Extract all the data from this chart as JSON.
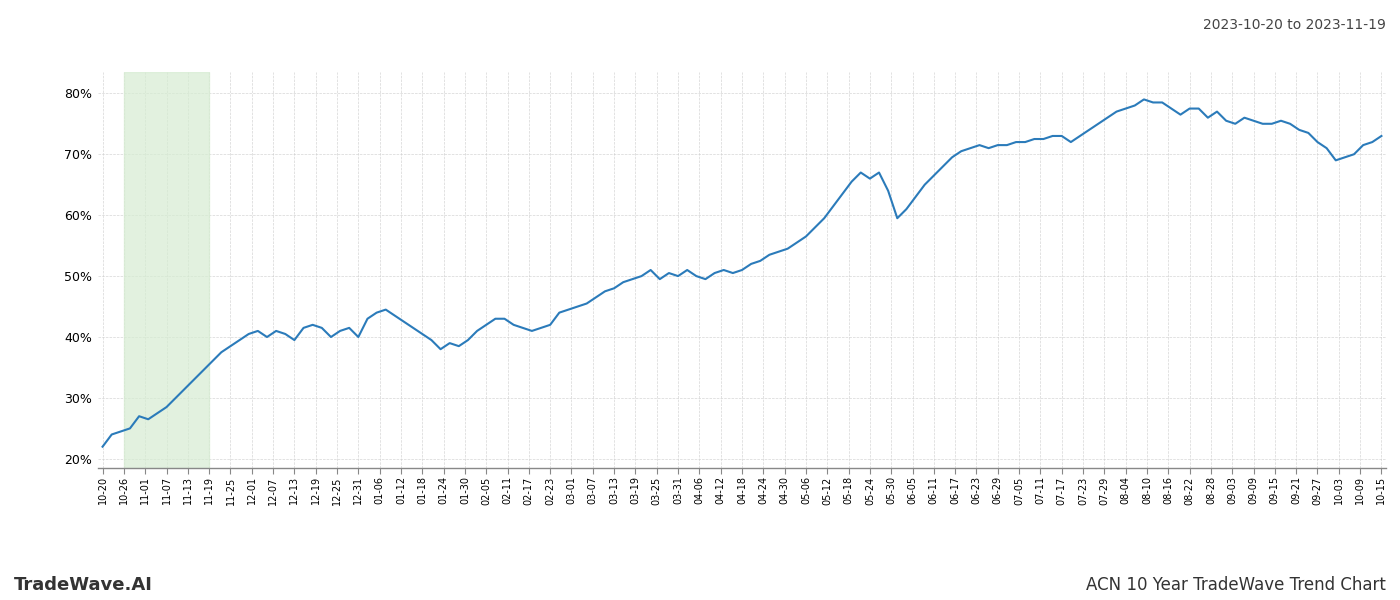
{
  "title_top_right": "2023-10-20 to 2023-11-19",
  "title_bottom_left": "TradeWave.AI",
  "title_bottom_right": "ACN 10 Year TradeWave Trend Chart",
  "line_color": "#2b7bba",
  "line_width": 1.5,
  "background_color": "#ffffff",
  "grid_color": "#cccccc",
  "highlight_color": "#d6ecd2",
  "highlight_alpha": 0.7,
  "ylim": [
    0.185,
    0.835
  ],
  "yticks": [
    0.2,
    0.3,
    0.4,
    0.5,
    0.6,
    0.7,
    0.8
  ],
  "highlight_x_start_label": "10-26",
  "highlight_x_end_label": "11-19",
  "x_labels": [
    "10-20",
    "10-26",
    "11-01",
    "11-07",
    "11-13",
    "11-19",
    "11-25",
    "12-01",
    "12-07",
    "12-13",
    "12-19",
    "12-25",
    "12-31",
    "01-06",
    "01-12",
    "01-18",
    "01-24",
    "01-30",
    "02-05",
    "02-11",
    "02-17",
    "02-23",
    "03-01",
    "03-07",
    "03-13",
    "03-19",
    "03-25",
    "03-31",
    "04-06",
    "04-12",
    "04-18",
    "04-24",
    "04-30",
    "05-06",
    "05-12",
    "05-18",
    "05-24",
    "05-30",
    "06-05",
    "06-11",
    "06-17",
    "06-23",
    "06-29",
    "07-05",
    "07-11",
    "07-17",
    "07-23",
    "07-29",
    "08-04",
    "08-10",
    "08-16",
    "08-22",
    "08-28",
    "09-03",
    "09-09",
    "09-15",
    "09-21",
    "09-27",
    "10-03",
    "10-09",
    "10-15"
  ],
  "values": [
    0.22,
    0.24,
    0.245,
    0.25,
    0.27,
    0.265,
    0.275,
    0.285,
    0.3,
    0.315,
    0.33,
    0.345,
    0.36,
    0.375,
    0.385,
    0.395,
    0.405,
    0.41,
    0.4,
    0.41,
    0.405,
    0.395,
    0.415,
    0.42,
    0.415,
    0.4,
    0.41,
    0.415,
    0.4,
    0.43,
    0.44,
    0.445,
    0.435,
    0.425,
    0.415,
    0.405,
    0.395,
    0.38,
    0.39,
    0.385,
    0.395,
    0.41,
    0.42,
    0.43,
    0.43,
    0.42,
    0.415,
    0.41,
    0.415,
    0.42,
    0.44,
    0.445,
    0.45,
    0.455,
    0.465,
    0.475,
    0.48,
    0.49,
    0.495,
    0.5,
    0.51,
    0.495,
    0.505,
    0.5,
    0.51,
    0.5,
    0.495,
    0.505,
    0.51,
    0.505,
    0.51,
    0.52,
    0.525,
    0.535,
    0.54,
    0.545,
    0.555,
    0.565,
    0.58,
    0.595,
    0.615,
    0.635,
    0.655,
    0.67,
    0.66,
    0.67,
    0.64,
    0.595,
    0.61,
    0.63,
    0.65,
    0.665,
    0.68,
    0.695,
    0.705,
    0.71,
    0.715,
    0.71,
    0.715,
    0.715,
    0.72,
    0.72,
    0.725,
    0.725,
    0.73,
    0.73,
    0.72,
    0.73,
    0.74,
    0.75,
    0.76,
    0.77,
    0.775,
    0.78,
    0.79,
    0.785,
    0.785,
    0.775,
    0.765,
    0.775,
    0.775,
    0.76,
    0.77,
    0.755,
    0.75,
    0.76,
    0.755,
    0.75,
    0.75,
    0.755,
    0.75,
    0.74,
    0.735,
    0.72,
    0.71,
    0.69,
    0.695,
    0.7,
    0.715,
    0.72,
    0.73
  ]
}
